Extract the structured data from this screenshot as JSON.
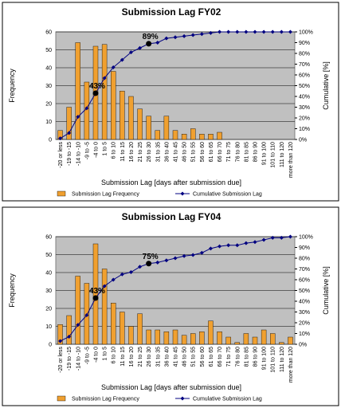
{
  "chart_data": [
    {
      "type": "bar-line",
      "title": "Submission Lag FY02",
      "x_label": "Submission Lag [days after submission due]",
      "y_label": "Frequency",
      "y2_label": "Cumulative [%]",
      "categories": [
        "-20 or less",
        "-19 to -15",
        "-14 to -10",
        "-9 to -5",
        "-4 to 0",
        "1 to 5",
        "6 to 10",
        "11 to 15",
        "16 to 20",
        "21 to 25",
        "26 to 30",
        "31 to 35",
        "36 to 40",
        "41 to 45",
        "46 to 50",
        "51 to 55",
        "56 to 60",
        "61 to 65",
        "66 to 70",
        "71 to 75",
        "76 to 80",
        "81 to 85",
        "86 to 90",
        "91 to 100",
        "101 to 110",
        "111 to 120",
        "more than 120"
      ],
      "series": [
        {
          "name": "Submission Lag Frequency",
          "color": "#f0a030",
          "values": [
            5,
            18,
            54,
            32,
            52,
            53,
            38,
            27,
            24,
            17,
            13,
            5,
            13,
            5,
            3,
            6,
            3,
            3,
            4,
            0,
            0,
            0,
            0,
            0,
            0,
            0,
            0
          ]
        },
        {
          "name": "Cumulative Submission Lag",
          "color": "#000080",
          "axis": "y2",
          "values": [
            1,
            6,
            21,
            29,
            43,
            57,
            67,
            74,
            81,
            85,
            89,
            90,
            94,
            95,
            96,
            97,
            98,
            99,
            100,
            100,
            100,
            100,
            100,
            100,
            100,
            100,
            100
          ],
          "value_labels": [
            null,
            null,
            null,
            null,
            "43%",
            null,
            null,
            null,
            null,
            null,
            "89%",
            null,
            null,
            null,
            null,
            null,
            null,
            null,
            null,
            null,
            null,
            null,
            null,
            null,
            null,
            null,
            null
          ]
        }
      ],
      "ylim": [
        0,
        60
      ],
      "yticks": [
        0,
        10,
        20,
        30,
        40,
        50,
        60
      ],
      "y2lim": [
        0,
        100
      ],
      "y2ticks": [
        {
          "value": 0,
          "label": "0%"
        },
        {
          "value": 10,
          "label": "10%"
        },
        {
          "value": 20,
          "label": "20%"
        },
        {
          "value": 30,
          "label": "30%"
        },
        {
          "value": 40,
          "label": "40%"
        },
        {
          "value": 50,
          "label": "50%"
        },
        {
          "value": 60,
          "label": "60%"
        },
        {
          "value": 70,
          "label": "70%"
        },
        {
          "value": 80,
          "label": "80%"
        },
        {
          "value": 90,
          "label": "90%"
        },
        {
          "value": 100,
          "label": "100%"
        }
      ],
      "grid": true,
      "legend": "bottom"
    },
    {
      "type": "bar-line",
      "title": "Submission Lag FY04",
      "x_label": "Submission Lag [days after submission due]",
      "y_label": "Frequency",
      "y2_label": "Cumulative [%]",
      "categories": [
        "-20 or less",
        "-19 to -15",
        "-14 to -10",
        "-9 to -5",
        "-4 to 0",
        "1 to 5",
        "6 to 10",
        "11 to 15",
        "16 to 20",
        "21 to 25",
        "26 to 30",
        "31 to 35",
        "36 to 40",
        "41 to 45",
        "46 to 50",
        "51 to 55",
        "56 to 60",
        "61 to 65",
        "66 to 70",
        "71 to 75",
        "76 to 80",
        "81 to 85",
        "86 to 90",
        "91 to 100",
        "101 to 110",
        "111 to 120",
        "more than 120"
      ],
      "series": [
        {
          "name": "Submission Lag Frequency",
          "color": "#f0a030",
          "values": [
            11,
            16,
            38,
            34,
            56,
            42,
            23,
            18,
            10,
            17,
            8,
            8,
            7,
            8,
            5,
            6,
            7,
            13,
            7,
            4,
            1,
            6,
            4,
            8,
            6,
            1,
            4
          ]
        },
        {
          "name": "Cumulative Submission Lag",
          "color": "#000080",
          "axis": "y2",
          "values": [
            3,
            7,
            18,
            27,
            43,
            54,
            60,
            65,
            67,
            72,
            75,
            76,
            78,
            80,
            82,
            83,
            85,
            89,
            91,
            92,
            92,
            94,
            95,
            97,
            99,
            99,
            100
          ],
          "value_labels": [
            null,
            null,
            null,
            null,
            "43%",
            null,
            null,
            null,
            null,
            null,
            "75%",
            null,
            null,
            null,
            null,
            null,
            null,
            null,
            null,
            null,
            null,
            null,
            null,
            null,
            null,
            null,
            null
          ]
        }
      ],
      "ylim": [
        0,
        60
      ],
      "yticks": [
        0,
        10,
        20,
        30,
        40,
        50,
        60
      ],
      "y2lim": [
        0,
        100
      ],
      "y2ticks": [
        {
          "value": 0,
          "label": "0%"
        },
        {
          "value": 10,
          "label": "10%"
        },
        {
          "value": 20,
          "label": "20%"
        },
        {
          "value": 30,
          "label": "30%"
        },
        {
          "value": 40,
          "label": "40%"
        },
        {
          "value": 50,
          "label": "50%"
        },
        {
          "value": 60,
          "label": "60%"
        },
        {
          "value": 70,
          "label": "70%"
        },
        {
          "value": 80,
          "label": "80%"
        },
        {
          "value": 90,
          "label": "90%"
        },
        {
          "value": 100,
          "label": "100%"
        }
      ],
      "grid": true,
      "legend": "bottom"
    }
  ]
}
